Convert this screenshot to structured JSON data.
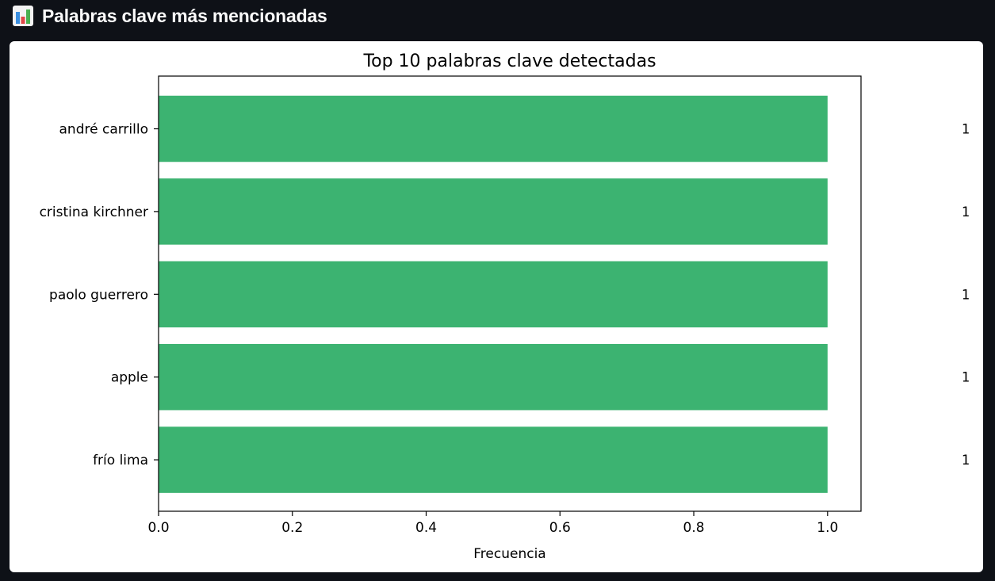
{
  "header": {
    "icon": "bar-chart-icon",
    "title": "Palabras clave más mencionadas"
  },
  "chart_data": {
    "type": "bar",
    "orientation": "horizontal",
    "title": "Top 10 palabras clave detectadas",
    "xlabel": "Frecuencia",
    "ylabel": "",
    "categories": [
      "andré carrillo",
      "cristina kirchner",
      "paolo guerrero",
      "apple",
      "frío lima"
    ],
    "values": [
      1,
      1,
      1,
      1,
      1
    ],
    "data_labels": [
      "1",
      "1",
      "1",
      "1",
      "1"
    ],
    "xlim": [
      0,
      1.05
    ],
    "xticks": [
      "0.0",
      "0.2",
      "0.4",
      "0.6",
      "0.8",
      "1.0"
    ],
    "bar_color": "#3cb371",
    "grid": false
  }
}
